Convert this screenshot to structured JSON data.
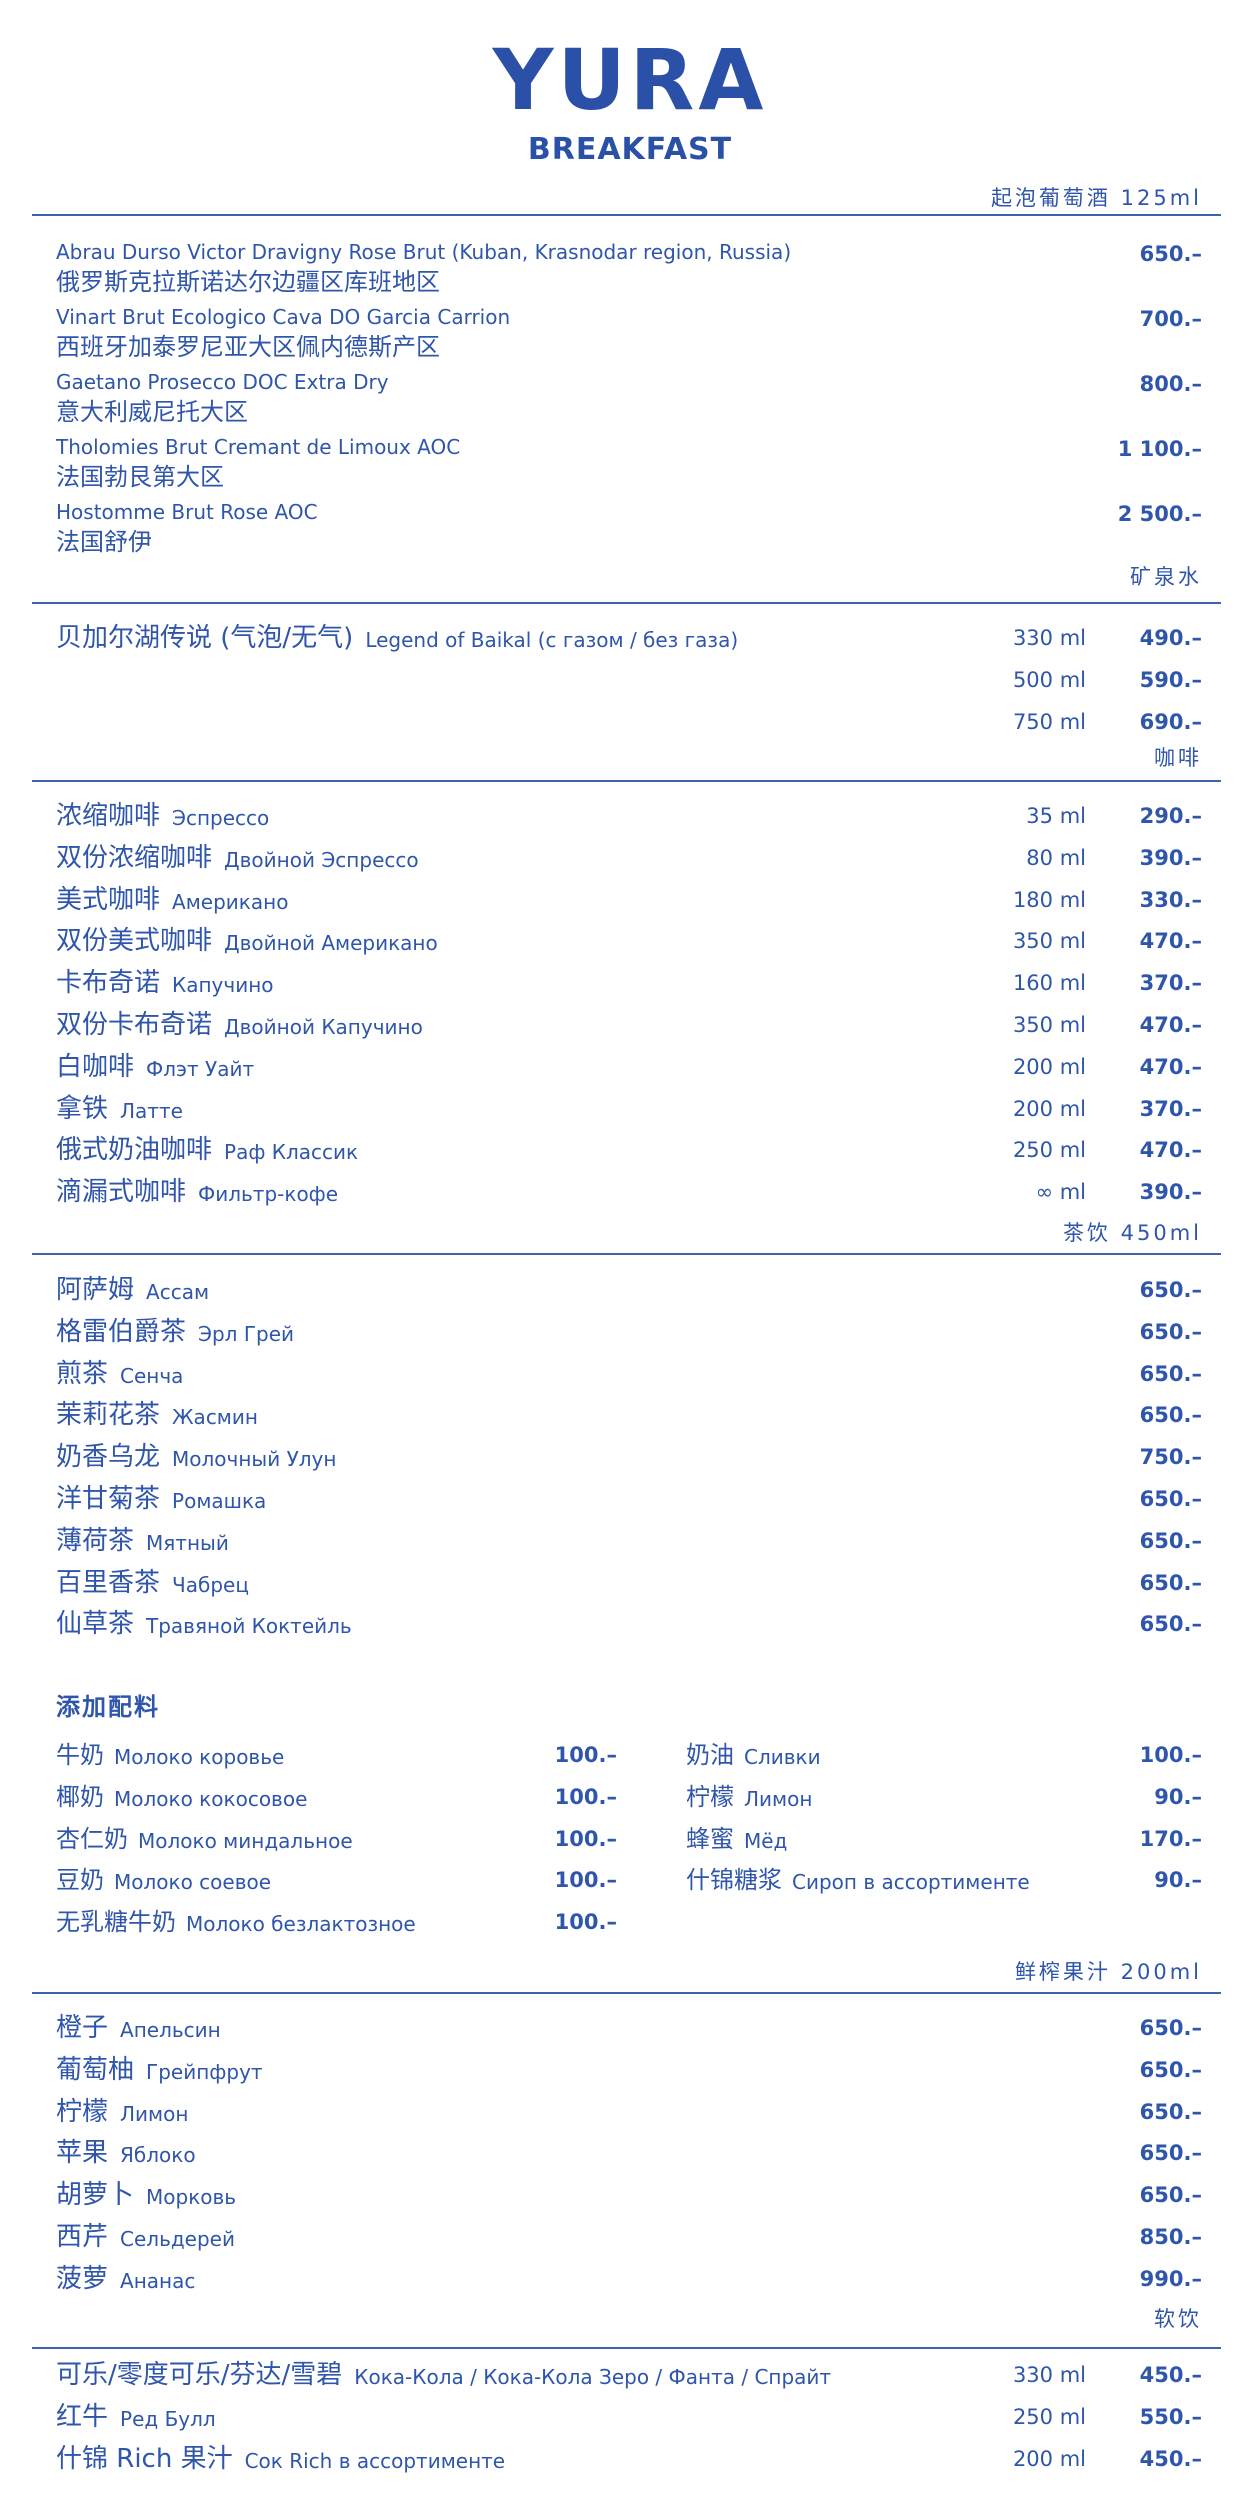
{
  "header": {
    "title": "YURA",
    "subtitle": "BREAKFAST"
  },
  "colors": {
    "text": "#2f56aa",
    "title": "#2a50a8",
    "rule": "#3f62ad",
    "background": "#ffffff"
  },
  "sparkling": {
    "category": "起泡葡萄酒 125ml",
    "items": [
      {
        "en": "Abrau Durso Victor Dravigny Rose Brut (Kuban, Krasnodar region, Russia)",
        "zh": "俄罗斯克拉斯诺达尔边疆区库班地区",
        "price": "650.–"
      },
      {
        "en": "Vinart Brut Ecologico Cava DO Garcia Carrion",
        "zh": "西班牙加泰罗尼亚大区佩内德斯产区",
        "price": "700.–"
      },
      {
        "en": "Gaetano Prosecco DOC Extra Dry",
        "zh": "意大利威尼托大区",
        "price": "800.–"
      },
      {
        "en": "Tholomies Brut Cremant de Limoux AOC",
        "zh": "法国勃艮第大区",
        "price": "1 100.–"
      },
      {
        "en": "Hostomme Brut Rose AOC",
        "zh": "法国舒伊",
        "price": "2 500.–"
      }
    ]
  },
  "water": {
    "category": "矿泉水",
    "items": [
      {
        "zh": "贝加尔湖传说 (气泡/无气)",
        "ru": "Legend of Baikal (с газом / без газа)",
        "volume": "330 ml",
        "price": "490.–"
      },
      {
        "zh": "",
        "ru": "",
        "volume": "500 ml",
        "price": "590.–"
      },
      {
        "zh": "",
        "ru": "",
        "volume": "750 ml",
        "price": "690.–"
      }
    ]
  },
  "coffee": {
    "category": "咖啡",
    "items": [
      {
        "zh": "浓缩咖啡",
        "ru": "Эспрессо",
        "volume": "35 ml",
        "price": "290.–"
      },
      {
        "zh": "双份浓缩咖啡",
        "ru": "Двойной Эспрессо",
        "volume": "80 ml",
        "price": "390.–"
      },
      {
        "zh": "美式咖啡",
        "ru": "Американо",
        "volume": "180 ml",
        "price": "330.–"
      },
      {
        "zh": "双份美式咖啡",
        "ru": "Двойной Американо",
        "volume": "350 ml",
        "price": "470.–"
      },
      {
        "zh": "卡布奇诺",
        "ru": "Капучино",
        "volume": "160 ml",
        "price": "370.–"
      },
      {
        "zh": "双份卡布奇诺",
        "ru": "Двойной Капучино",
        "volume": "350 ml",
        "price": "470.–"
      },
      {
        "zh": "白咖啡",
        "ru": "Флэт Уайт",
        "volume": "200 ml",
        "price": "470.–"
      },
      {
        "zh": "拿铁",
        "ru": "Латте",
        "volume": "200 ml",
        "price": "370.–"
      },
      {
        "zh": "俄式奶油咖啡",
        "ru": "Раф Классик",
        "volume": "250 ml",
        "price": "470.–"
      },
      {
        "zh": "滴漏式咖啡",
        "ru": "Фильтр-кофе",
        "volume": "∞ ml",
        "price": "390.–"
      }
    ]
  },
  "tea": {
    "category": "茶饮 450ml",
    "items": [
      {
        "zh": "阿萨姆",
        "ru": "Ассам",
        "price": "650.–"
      },
      {
        "zh": "格雷伯爵茶",
        "ru": "Эрл Грей",
        "price": "650.–"
      },
      {
        "zh": "煎茶",
        "ru": "Сенча",
        "price": "650.–"
      },
      {
        "zh": "茉莉花茶",
        "ru": "Жасмин",
        "price": "650.–"
      },
      {
        "zh": "奶香乌龙",
        "ru": "Молочный Улун",
        "price": "750.–"
      },
      {
        "zh": "洋甘菊茶",
        "ru": "Ромашка",
        "price": "650.–"
      },
      {
        "zh": "薄荷茶",
        "ru": "Мятный",
        "price": "650.–"
      },
      {
        "zh": "百里香茶",
        "ru": "Чабрец",
        "price": "650.–"
      },
      {
        "zh": "仙草茶",
        "ru": "Травяной Коктейль",
        "price": "650.–"
      }
    ]
  },
  "addons": {
    "title": "添加配料",
    "left": [
      {
        "zh": "牛奶",
        "ru": "Молоко коровье",
        "price": "100.–"
      },
      {
        "zh": "椰奶",
        "ru": "Молоко кокосовое",
        "price": "100.–"
      },
      {
        "zh": "杏仁奶",
        "ru": "Молоко миндальное",
        "price": "100.–"
      },
      {
        "zh": "豆奶",
        "ru": "Молоко соевое",
        "price": "100.–"
      },
      {
        "zh": "无乳糖牛奶",
        "ru": "Молоко безлактозное",
        "price": "100.–"
      }
    ],
    "right": [
      {
        "zh": "奶油",
        "ru": "Сливки",
        "price": "100.–"
      },
      {
        "zh": "柠檬",
        "ru": "Лимон",
        "price": "90.–"
      },
      {
        "zh": "蜂蜜",
        "ru": "Мёд",
        "price": "170.–"
      },
      {
        "zh": "什锦糖浆",
        "ru": "Сироп в ассортименте",
        "price": "90.–"
      }
    ]
  },
  "juice": {
    "category": "鲜榨果汁 200ml",
    "items": [
      {
        "zh": "橙子",
        "ru": "Апельсин",
        "price": "650.–"
      },
      {
        "zh": "葡萄柚",
        "ru": "Грейпфрут",
        "price": "650.–"
      },
      {
        "zh": "柠檬",
        "ru": "Лимон",
        "price": "650.–"
      },
      {
        "zh": "苹果",
        "ru": "Яблоко",
        "price": "650.–"
      },
      {
        "zh": "胡萝卜",
        "ru": "Морковь",
        "price": "650.–"
      },
      {
        "zh": "西芹",
        "ru": "Сельдерей",
        "price": "850.–"
      },
      {
        "zh": "菠萝",
        "ru": "Ананас",
        "price": "990.–"
      }
    ]
  },
  "soft": {
    "category": "软饮",
    "items": [
      {
        "zh": "可乐/零度可乐/芬达/雪碧",
        "ru": "Кока-Кола / Кока-Кола Зеро / Фанта / Спрайт",
        "volume": "330 ml",
        "price": "450.–"
      },
      {
        "zh": "红牛",
        "ru": "Ред Булл",
        "volume": "250 ml",
        "price": "550.–"
      },
      {
        "zh": "什锦 Rich 果汁",
        "ru": "Сок Rich в ассортименте",
        "volume": "200 ml",
        "price": "450.–"
      }
    ]
  }
}
